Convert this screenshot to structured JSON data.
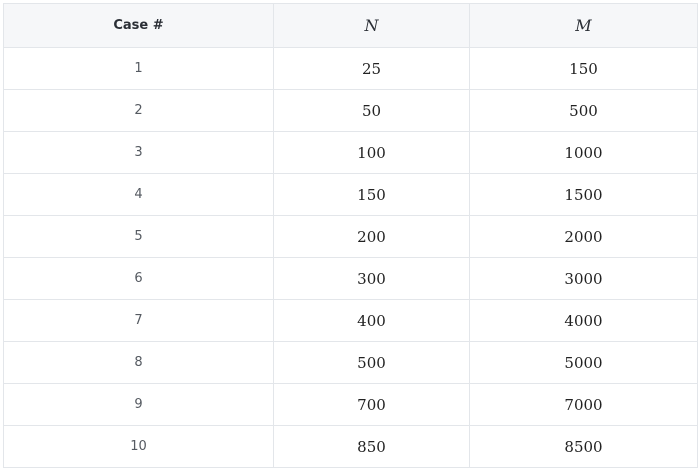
{
  "table": {
    "headers": [
      "Case #",
      "N",
      "M"
    ],
    "rows": [
      [
        "1",
        "25",
        "150"
      ],
      [
        "2",
        "50",
        "500"
      ],
      [
        "3",
        "100",
        "1000"
      ],
      [
        "4",
        "150",
        "1500"
      ],
      [
        "5",
        "200",
        "2000"
      ],
      [
        "6",
        "300",
        "3000"
      ],
      [
        "7",
        "400",
        "4000"
      ],
      [
        "8",
        "500",
        "5000"
      ],
      [
        "9",
        "700",
        "7000"
      ],
      [
        "10",
        "850",
        "8500"
      ]
    ]
  }
}
